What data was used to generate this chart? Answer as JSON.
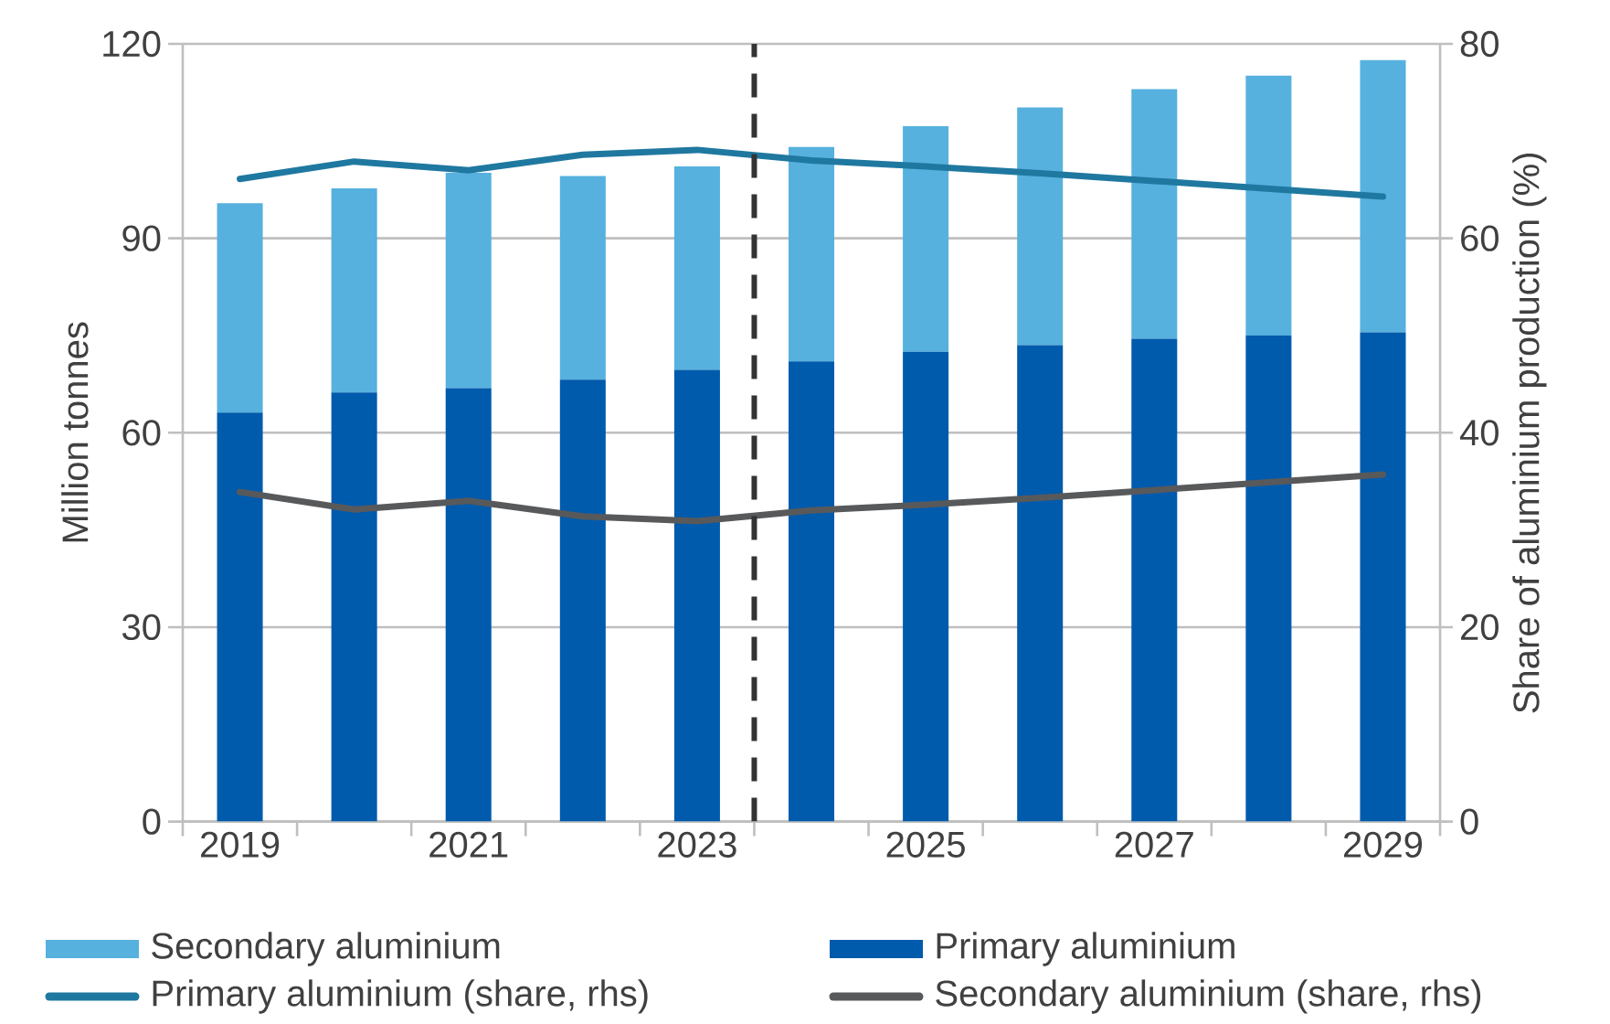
{
  "chart_data": {
    "type": "bar",
    "stacked": true,
    "x": [
      2019,
      2020,
      2021,
      2022,
      2023,
      2024,
      2025,
      2026,
      2027,
      2028,
      2029
    ],
    "xlim": [
      2018.5,
      2029.5
    ],
    "xticks": [
      2019,
      2021,
      2023,
      2025,
      2027,
      2029
    ],
    "ylabel": "Million tonnes",
    "ylim": [
      0,
      120
    ],
    "yticks": [
      0,
      30,
      60,
      90,
      120
    ],
    "y2label": "Share of aluminium production (%)",
    "y2lim": [
      0,
      80
    ],
    "y2ticks": [
      0,
      20,
      40,
      60,
      80
    ],
    "series": [
      {
        "name": "Primary aluminium",
        "color": "#005bac",
        "values": [
          63.1,
          66.2,
          66.9,
          68.2,
          69.7,
          71.0,
          72.5,
          73.5,
          74.5,
          75.0,
          75.5
        ]
      },
      {
        "name": "Secondary aluminium",
        "color": "#56b1de",
        "values": [
          32.3,
          31.5,
          33.2,
          31.4,
          31.4,
          33.1,
          34.8,
          36.7,
          38.5,
          40.1,
          42.0
        ]
      },
      {
        "name": "Primary aluminium (share, rhs)",
        "type": "line",
        "axis": "y2",
        "color": "#1f78a0",
        "values": [
          66.1,
          67.9,
          67.0,
          68.6,
          69.1,
          68.0,
          67.4,
          66.7,
          65.9,
          65.1,
          64.3
        ]
      },
      {
        "name": "Secondary aluminium (share, rhs)",
        "type": "line",
        "axis": "y2",
        "color": "#58595b",
        "values": [
          33.9,
          32.1,
          33.0,
          31.4,
          30.9,
          32.0,
          32.6,
          33.3,
          34.1,
          34.9,
          35.7
        ]
      }
    ],
    "ref_lines": [
      {
        "axis": "x",
        "value": 2023.5,
        "color": "#333333",
        "line_style": "dashed"
      }
    ],
    "grid": "y",
    "legend": "bottom"
  }
}
